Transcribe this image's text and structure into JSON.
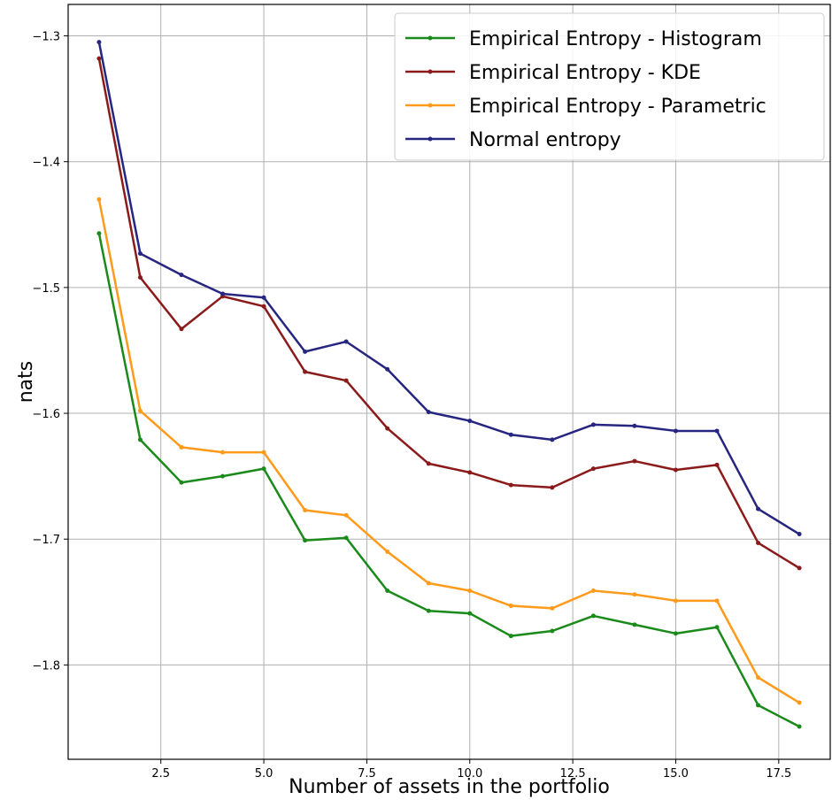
{
  "chart_data": {
    "type": "line",
    "title": "",
    "xlabel": "Number of assets in the portfolio",
    "ylabel": "nats",
    "xlim": [
      0.25,
      18.75
    ],
    "ylim": [
      -1.875,
      -1.275
    ],
    "xticks": [
      2.5,
      5.0,
      7.5,
      10.0,
      12.5,
      15.0,
      17.5
    ],
    "xtick_labels": [
      "2.5",
      "5.0",
      "7.5",
      "10.0",
      "12.5",
      "15.0",
      "17.5"
    ],
    "yticks": [
      -1.3,
      -1.4,
      -1.5,
      -1.6,
      -1.7,
      -1.8
    ],
    "ytick_labels": [
      "−1.3",
      "−1.4",
      "−1.5",
      "−1.6",
      "−1.7",
      "−1.8"
    ],
    "grid": true,
    "legend_position": "top-right",
    "x": [
      1,
      2,
      3,
      4,
      5,
      6,
      7,
      8,
      9,
      10,
      11,
      12,
      13,
      14,
      15,
      16,
      17,
      18
    ],
    "series": [
      {
        "name": "Empirical Entropy - Histogram",
        "color": "#1a8a1a",
        "values": [
          -1.457,
          -1.621,
          -1.655,
          -1.65,
          -1.644,
          -1.701,
          -1.699,
          -1.741,
          -1.757,
          -1.759,
          -1.777,
          -1.773,
          -1.761,
          -1.768,
          -1.775,
          -1.77,
          -1.832,
          -1.849
        ]
      },
      {
        "name": "Empirical Entropy - KDE",
        "color": "#8b1a1a",
        "values": [
          -1.318,
          -1.492,
          -1.533,
          -1.507,
          -1.515,
          -1.567,
          -1.574,
          -1.612,
          -1.64,
          -1.647,
          -1.657,
          -1.659,
          -1.644,
          -1.638,
          -1.645,
          -1.641,
          -1.703,
          -1.723
        ]
      },
      {
        "name": "Empirical Entropy - Parametric",
        "color": "#ff9a1a",
        "values": [
          -1.43,
          -1.598,
          -1.627,
          -1.631,
          -1.631,
          -1.677,
          -1.681,
          -1.71,
          -1.735,
          -1.741,
          -1.753,
          -1.755,
          -1.741,
          -1.744,
          -1.749,
          -1.749,
          -1.81,
          -1.83
        ]
      },
      {
        "name": "Normal entropy",
        "color": "#262680",
        "values": [
          -1.305,
          -1.473,
          -1.49,
          -1.505,
          -1.508,
          -1.551,
          -1.543,
          -1.565,
          -1.599,
          -1.606,
          -1.617,
          -1.621,
          -1.609,
          -1.61,
          -1.614,
          -1.614,
          -1.676,
          -1.696
        ]
      }
    ]
  }
}
